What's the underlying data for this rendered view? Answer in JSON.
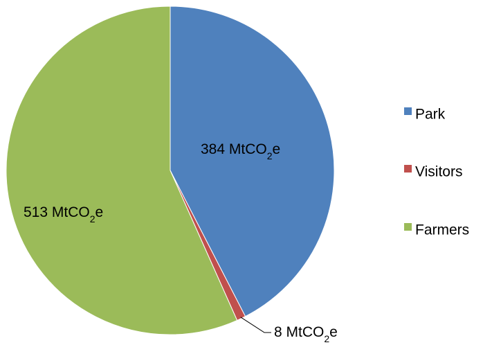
{
  "chart_data": {
    "type": "pie",
    "categories": [
      "Park",
      "Visitors",
      "Farmers"
    ],
    "values": [
      384,
      8,
      513
    ],
    "unit": "MtCO2e",
    "labels": [
      {
        "value": "384",
        "unit_prefix": " MtCO",
        "unit_sub": "2",
        "unit_suffix": "e"
      },
      {
        "value": "8",
        "unit_prefix": " MtCO",
        "unit_sub": "2",
        "unit_suffix": "e"
      },
      {
        "value": "513",
        "unit_prefix": " MtCO",
        "unit_sub": "2",
        "unit_suffix": "e"
      }
    ],
    "colors": [
      "#4F81BD",
      "#C0504D",
      "#9BBB59"
    ],
    "start_angle": "12 o'clock",
    "direction": "clockwise",
    "legend_position": "right",
    "title": ""
  }
}
